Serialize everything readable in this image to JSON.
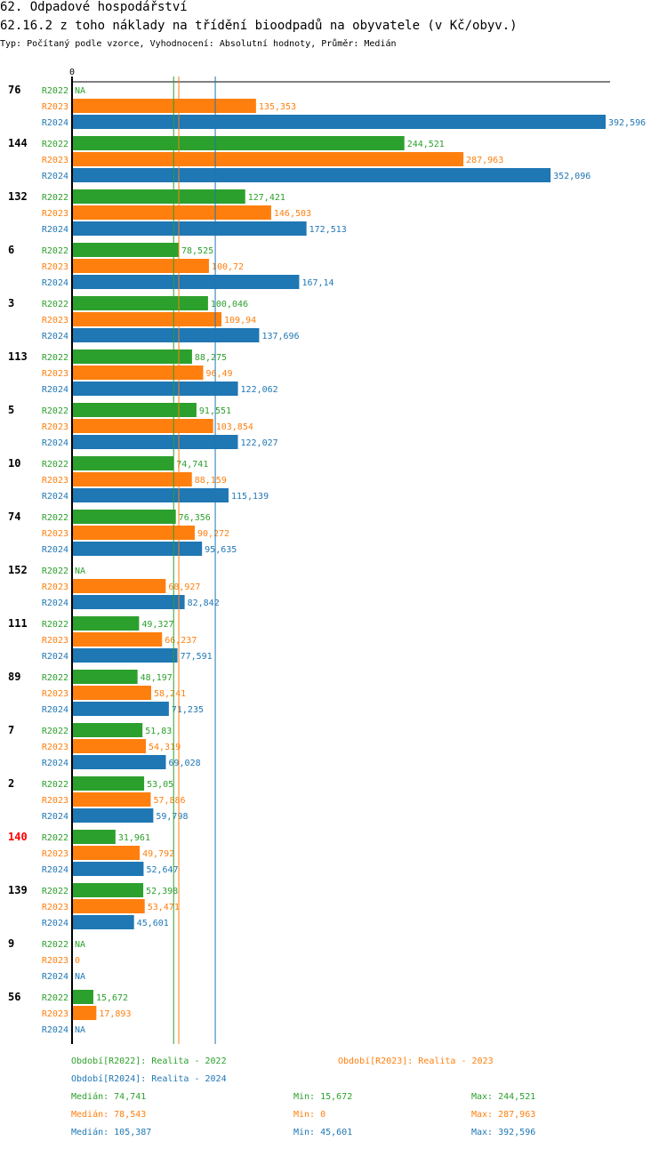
{
  "titles": {
    "main": "62. Odpadové hospodářství",
    "sub": "62.16.2 z toho náklady na třídění bioodpadů na obyvatele (v Kč/obyv.)",
    "info": "Typ: Počítaný podle vzorce, Vyhodnocení: Absolutní hodnoty, Průměr: Medián"
  },
  "colors": {
    "R2022": "#2ca02c",
    "R2023": "#ff7f0e",
    "R2024": "#1f77b4",
    "highlight": "#ff0000",
    "text": "#000000"
  },
  "chart_data": {
    "type": "bar",
    "orientation": "horizontal",
    "axis_zero_label": "0",
    "series_names": [
      "R2022",
      "R2023",
      "R2024"
    ],
    "xlim": [
      0,
      392.596
    ],
    "highlight_group": "140",
    "groups": [
      {
        "id": "76",
        "values": [
          null,
          135.353,
          392.596
        ],
        "labels": [
          "NA",
          "135,353",
          "392,596"
        ]
      },
      {
        "id": "144",
        "values": [
          244.521,
          287.963,
          352.096
        ],
        "labels": [
          "244,521",
          "287,963",
          "352,096"
        ]
      },
      {
        "id": "132",
        "values": [
          127.421,
          146.503,
          172.513
        ],
        "labels": [
          "127,421",
          "146,503",
          "172,513"
        ]
      },
      {
        "id": "6",
        "values": [
          78.525,
          100.72,
          167.14
        ],
        "labels": [
          "78,525",
          "100,72",
          "167,14"
        ]
      },
      {
        "id": "3",
        "values": [
          100.046,
          109.94,
          137.696
        ],
        "labels": [
          "100,046",
          "109,94",
          "137,696"
        ]
      },
      {
        "id": "113",
        "values": [
          88.275,
          96.49,
          122.062
        ],
        "labels": [
          "88,275",
          "96,49",
          "122,062"
        ]
      },
      {
        "id": "5",
        "values": [
          91.551,
          103.854,
          122.027
        ],
        "labels": [
          "91,551",
          "103,854",
          "122,027"
        ]
      },
      {
        "id": "10",
        "values": [
          74.741,
          88.159,
          115.139
        ],
        "labels": [
          "74,741",
          "88,159",
          "115,139"
        ]
      },
      {
        "id": "74",
        "values": [
          76.356,
          90.272,
          95.635
        ],
        "labels": [
          "76,356",
          "90,272",
          "95,635"
        ]
      },
      {
        "id": "152",
        "values": [
          null,
          68.927,
          82.842
        ],
        "labels": [
          "NA",
          "68,927",
          "82,842"
        ]
      },
      {
        "id": "111",
        "values": [
          49.327,
          66.237,
          77.591
        ],
        "labels": [
          "49,327",
          "66,237",
          "77,591"
        ]
      },
      {
        "id": "89",
        "values": [
          48.197,
          58.241,
          71.235
        ],
        "labels": [
          "48,197",
          "58,241",
          "71,235"
        ]
      },
      {
        "id": "7",
        "values": [
          51.83,
          54.319,
          69.028
        ],
        "labels": [
          "51,83",
          "54,319",
          "69,028"
        ]
      },
      {
        "id": "2",
        "values": [
          53.05,
          57.886,
          59.798
        ],
        "labels": [
          "53,05",
          "57,886",
          "59,798"
        ]
      },
      {
        "id": "140",
        "values": [
          31.961,
          49.792,
          52.647
        ],
        "labels": [
          "31,961",
          "49,792",
          "52,647"
        ]
      },
      {
        "id": "139",
        "values": [
          52.398,
          53.471,
          45.601
        ],
        "labels": [
          "52,398",
          "53,471",
          "45,601"
        ]
      },
      {
        "id": "9",
        "values": [
          null,
          0,
          null
        ],
        "labels": [
          "NA",
          "0",
          "NA"
        ]
      },
      {
        "id": "56",
        "values": [
          15.672,
          17.893,
          null
        ],
        "labels": [
          "15,672",
          "17,893",
          "NA"
        ]
      }
    ],
    "medians": [
      74.741,
      78.543,
      105.387
    ]
  },
  "legend": {
    "r2022": "Období[R2022]: Realita - 2022",
    "r2023": "Období[R2023]: Realita - 2023",
    "r2024": "Období[R2024]: Realita - 2024",
    "stats": [
      {
        "median": "Medián: 74,741",
        "min": "Min: 15,672",
        "max": "Max: 244,521"
      },
      {
        "median": "Medián: 78,543",
        "min": "Min: 0",
        "max": "Max: 287,963"
      },
      {
        "median": "Medián: 105,387",
        "min": "Min: 45,601",
        "max": "Max: 392,596"
      }
    ]
  }
}
